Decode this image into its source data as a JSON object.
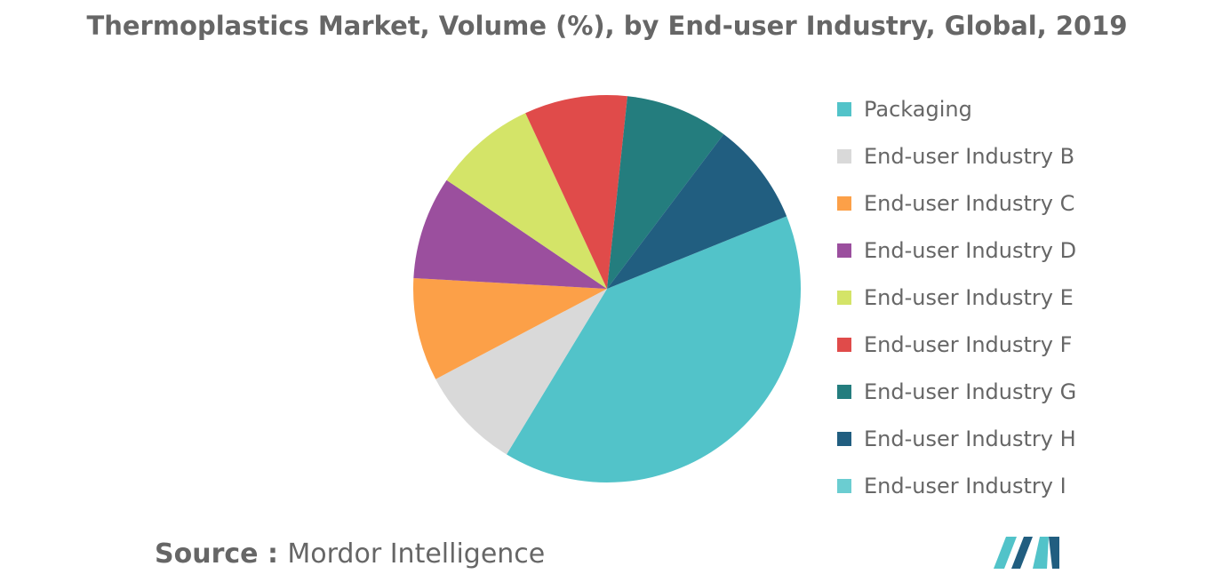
{
  "title": "Thermoplastics Market, Volume (%), by End-user Industry, Global, 2019",
  "chart_data": {
    "type": "pie",
    "title": "Thermoplastics Market, Volume (%), by End-user Industry, Global, 2019",
    "start_angle_deg": -22,
    "legend_position": "right",
    "slices": [
      {
        "label": "Packaging",
        "value": 37,
        "color": "#52c3c9"
      },
      {
        "label": "End-user Industry B",
        "value": 8,
        "color": "#d9d9d9"
      },
      {
        "label": "End-user Industry C",
        "value": 8,
        "color": "#fca048"
      },
      {
        "label": "End-user Industry D",
        "value": 8,
        "color": "#9b4f9e"
      },
      {
        "label": "End-user Industry E",
        "value": 8,
        "color": "#d4e468"
      },
      {
        "label": "End-user Industry F",
        "value": 8,
        "color": "#e04b4a"
      },
      {
        "label": "End-user Industry G",
        "value": 8,
        "color": "#247d7e"
      },
      {
        "label": "End-user Industry H",
        "value": 8,
        "color": "#215e80"
      },
      {
        "label": "End-user Industry I",
        "value": 0,
        "color": "#6bcdd1"
      }
    ]
  },
  "source": {
    "key": "Source : ",
    "value": "Mordor Intelligence"
  },
  "logo": {
    "name": "mordor-intelligence-logo",
    "color_dark": "#215e80",
    "color_light": "#52c3c9"
  }
}
